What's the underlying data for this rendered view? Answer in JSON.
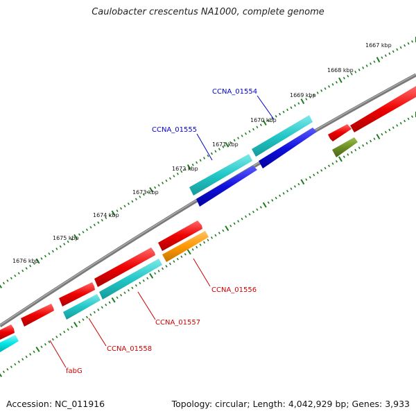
{
  "title": "Caulobacter crescentus NA1000, complete genome",
  "footer": {
    "accession": "Accession: NC_011916",
    "summary": "Topology: circular; Length: 4,042,929 bp; Genes: 3,933"
  },
  "colors": {
    "backbone": "#808080",
    "tick": "#1e7a1e",
    "forward_cds": "#ee0000",
    "reverse_cds": "#ee0000",
    "teal_track": "#22c7c7",
    "blue_track": "#1010dd",
    "orange_track": "#ff9900",
    "olive_track": "#6b8e23",
    "cyan_track": "#00e5e5",
    "label_blue": "#0000cc",
    "label_red": "#cc0000"
  },
  "kbp_labels": [
    "1667 kbp",
    "1668 kbp",
    "1669 kbp",
    "1670 kbp",
    "1671 kbp",
    "1672 kbp",
    "1673 kbp",
    "1674 kbp",
    "1675 kbp",
    "1676 kbp"
  ],
  "gene_labels": [
    {
      "text": "CCNA_01554",
      "color": "blue"
    },
    {
      "text": "CCNA_01555",
      "color": "blue"
    },
    {
      "text": "CCNA_01556",
      "color": "red"
    },
    {
      "text": "CCNA_01557",
      "color": "red"
    },
    {
      "text": "CCNA_01558",
      "color": "red"
    },
    {
      "text": "fabG",
      "color": "red"
    }
  ]
}
